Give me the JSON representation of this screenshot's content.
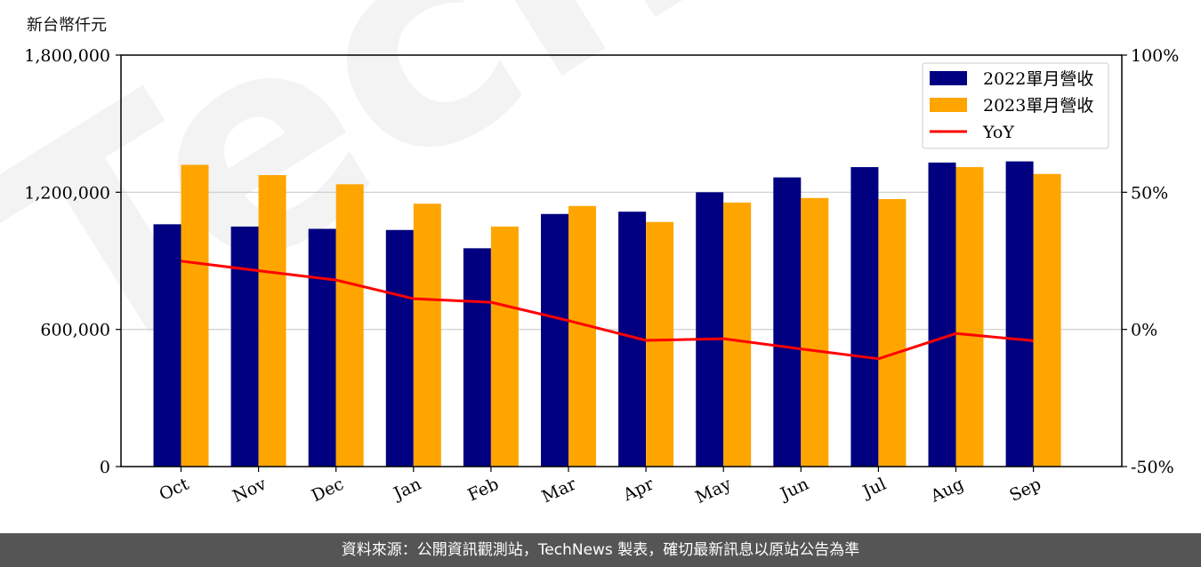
{
  "unit_label": "新台幣仟元",
  "watermark": "TechNews",
  "footer": "資料來源：公開資訊觀測站，TechNews 製表，確切最新訊息以原站公告為準",
  "colors": {
    "series2022": "#000080",
    "series2023": "#FFA500",
    "yoy": "#FF0000"
  },
  "chart_data": {
    "type": "bar",
    "categories": [
      "Oct",
      "Nov",
      "Dec",
      "Jan",
      "Feb",
      "Mar",
      "Apr",
      "May",
      "Jun",
      "Jul",
      "Aug",
      "Sep"
    ],
    "series": [
      {
        "name": "2022單月營收",
        "values": [
          1060000,
          1050000,
          1040000,
          1035000,
          955000,
          1105000,
          1115000,
          1200000,
          1265000,
          1310000,
          1330000,
          1335000
        ]
      },
      {
        "name": "2023單月營收",
        "values": [
          1320000,
          1275000,
          1235000,
          1150000,
          1050000,
          1140000,
          1070000,
          1155000,
          1175000,
          1170000,
          1310000,
          1280000
        ]
      }
    ],
    "line_series": {
      "name": "YoY",
      "values": [
        24.9,
        21.4,
        18.0,
        11.2,
        9.9,
        3.2,
        -4.0,
        -3.4,
        -7.1,
        -10.7,
        -1.5,
        -4.1
      ]
    },
    "ylim": [
      0,
      1800000
    ],
    "yticks": [
      "0",
      "600,000",
      "1,200,000",
      "1,800,000"
    ],
    "y2lim": [
      -50,
      100
    ],
    "y2ticks": [
      "-50%",
      "0%",
      "50%",
      "100%"
    ],
    "grid": "horizontal",
    "legend": "top-right"
  }
}
